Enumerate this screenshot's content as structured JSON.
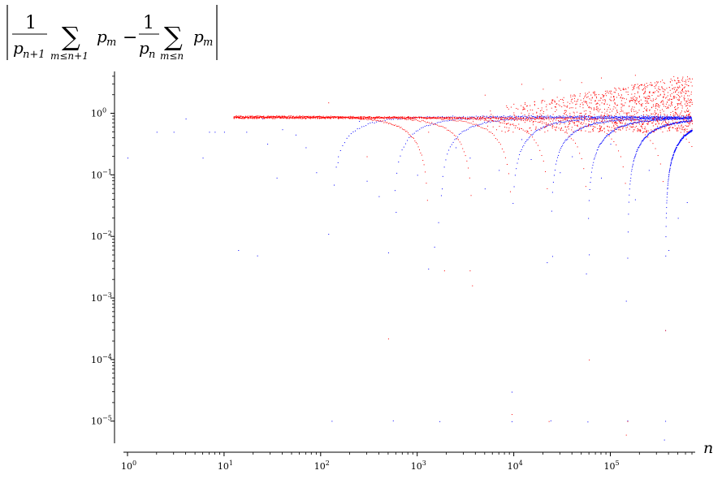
{
  "chart_data": {
    "type": "scatter",
    "title": {
      "frac1_num": "1",
      "frac1_den": "p",
      "frac1_den_sub": "n+1",
      "sum1_sub": "m≤n+1",
      "term1": "p",
      "term1_sub": "m",
      "minus": "−",
      "frac2_num": "1",
      "frac2_den": "p",
      "frac2_den_sub": "n",
      "sum2_sub": "m≤n",
      "term2": "p",
      "term2_sub": "m"
    },
    "xlabel": "n",
    "ylabel": "",
    "xscale": "log",
    "yscale": "log",
    "xlim": [
      1,
      700000
    ],
    "ylim": [
      4.5e-06,
      4.5
    ],
    "grid": false,
    "x_ticks": [
      {
        "base": "10",
        "exp": "0",
        "value": 1
      },
      {
        "base": "10",
        "exp": "1",
        "value": 10
      },
      {
        "base": "10",
        "exp": "2",
        "value": 100
      },
      {
        "base": "10",
        "exp": "3",
        "value": 1000
      },
      {
        "base": "10",
        "exp": "4",
        "value": 10000
      },
      {
        "base": "10",
        "exp": "5",
        "value": 100000
      }
    ],
    "y_ticks": [
      {
        "base": "10",
        "exp": "0",
        "value": 1
      },
      {
        "base": "10",
        "exp": "−1",
        "value": 0.1
      },
      {
        "base": "10",
        "exp": "−2",
        "value": 0.01
      },
      {
        "base": "10",
        "exp": "−3",
        "value": 0.001
      },
      {
        "base": "10",
        "exp": "−4",
        "value": 0.0001
      },
      {
        "base": "10",
        "exp": "−5",
        "value": 1e-05
      }
    ],
    "series": [
      {
        "color": "#0000ff",
        "points": [
          [
            1,
            0.19
          ],
          [
            2,
            0.5
          ],
          [
            3,
            0.5
          ],
          [
            4,
            0.82
          ],
          [
            6,
            0.19
          ],
          [
            7,
            0.5
          ],
          [
            8,
            0.5
          ],
          [
            10,
            0.5
          ],
          [
            14,
            0.006
          ],
          [
            17,
            0.5
          ],
          [
            22,
            0.0049
          ],
          [
            25,
            0.82
          ],
          [
            28,
            0.32
          ],
          [
            35,
            0.09
          ],
          [
            40,
            0.55
          ],
          [
            55,
            0.45
          ],
          [
            70,
            0.28
          ],
          [
            90,
            0.11
          ],
          [
            120,
            0.011
          ],
          [
            150,
            0.16
          ],
          [
            250,
            0.75
          ],
          [
            300,
            0.08
          ],
          [
            400,
            0.045
          ],
          [
            500,
            0.0055
          ],
          [
            600,
            0.025
          ],
          [
            1000,
            0.1
          ],
          [
            1300,
            0.003
          ],
          [
            1500,
            0.0068
          ],
          [
            1650,
            0.017
          ],
          [
            1800,
            0.06
          ],
          [
            2500,
            0.28
          ],
          [
            3500,
            0.19
          ],
          [
            5000,
            0.06
          ],
          [
            7000,
            0.12
          ],
          [
            9500,
            3e-05
          ],
          [
            12000,
            0.38
          ],
          [
            15000,
            0.18
          ],
          [
            22000,
            0.0038
          ],
          [
            25000,
            0.0048
          ],
          [
            30000,
            0.11
          ],
          [
            40000,
            0.2
          ],
          [
            56000,
            0.0025
          ],
          [
            60000,
            0.0051
          ],
          [
            80000,
            0.09
          ],
          [
            100000,
            0.32
          ],
          [
            145000,
            0.0009
          ],
          [
            150000,
            0.0045
          ],
          [
            180000,
            0.04
          ],
          [
            250000,
            0.12
          ],
          [
            360000,
            5e-06
          ],
          [
            370000,
            0.0003
          ],
          [
            400000,
            0.006
          ],
          [
            500000,
            0.02
          ],
          [
            620000,
            0.036
          ]
        ],
        "curves": [
          {
            "ref": 130,
            "side": "right",
            "amp": 0.9
          },
          {
            "ref": 560,
            "side": "right",
            "amp": 0.88
          },
          {
            "ref": 1700,
            "side": "right",
            "amp": 0.87
          },
          {
            "ref": 9500,
            "side": "right",
            "amp": 0.86
          },
          {
            "ref": 24000,
            "side": "right",
            "amp": 0.85
          },
          {
            "ref": 58000,
            "side": "right",
            "amp": 0.85
          },
          {
            "ref": 150000,
            "side": "right",
            "amp": 0.84
          },
          {
            "ref": 370000,
            "side": "right",
            "amp": 0.84
          }
        ]
      },
      {
        "color": "#ff0000",
        "points": [
          [
            120,
            1.5
          ],
          [
            300,
            0.2
          ],
          [
            500,
            0.00022
          ],
          [
            800,
            0.9
          ],
          [
            1300,
            0.5
          ],
          [
            1900,
            0.0028
          ],
          [
            3500,
            0.0028
          ],
          [
            3700,
            0.0016
          ],
          [
            5000,
            2.0
          ],
          [
            9500,
            1.3e-05
          ],
          [
            12000,
            3.0
          ],
          [
            20000,
            2.5
          ],
          [
            23000,
            1e-05
          ],
          [
            30000,
            3.5
          ],
          [
            50000,
            3.2
          ],
          [
            60000,
            0.0001
          ],
          [
            80000,
            3.8
          ],
          [
            145000,
            6e-06
          ],
          [
            150000,
            1e-05
          ],
          [
            180000,
            4.2
          ],
          [
            300000,
            3.3
          ],
          [
            370000,
            0.0003
          ],
          [
            450000,
            4.0
          ],
          [
            600000,
            3.5
          ]
        ],
        "curves": [
          {
            "ref": 1300,
            "side": "left",
            "amp": 0.9
          },
          {
            "ref": 3700,
            "side": "left",
            "amp": 0.89
          },
          {
            "ref": 9500,
            "side": "left",
            "amp": 0.88
          },
          {
            "ref": 23000,
            "side": "left",
            "amp": 0.87
          },
          {
            "ref": 58000,
            "side": "left",
            "amp": 0.86
          },
          {
            "ref": 150000,
            "side": "left",
            "amp": 0.85
          },
          {
            "ref": 370000,
            "side": "left",
            "amp": 0.85
          },
          {
            "ref": 900000,
            "side": "left",
            "amp": 0.85
          }
        ],
        "scatter_band": {
          "x_from": 3000,
          "x_to": 700000,
          "y_from": 0.5,
          "y_to": 4.2
        }
      }
    ]
  }
}
